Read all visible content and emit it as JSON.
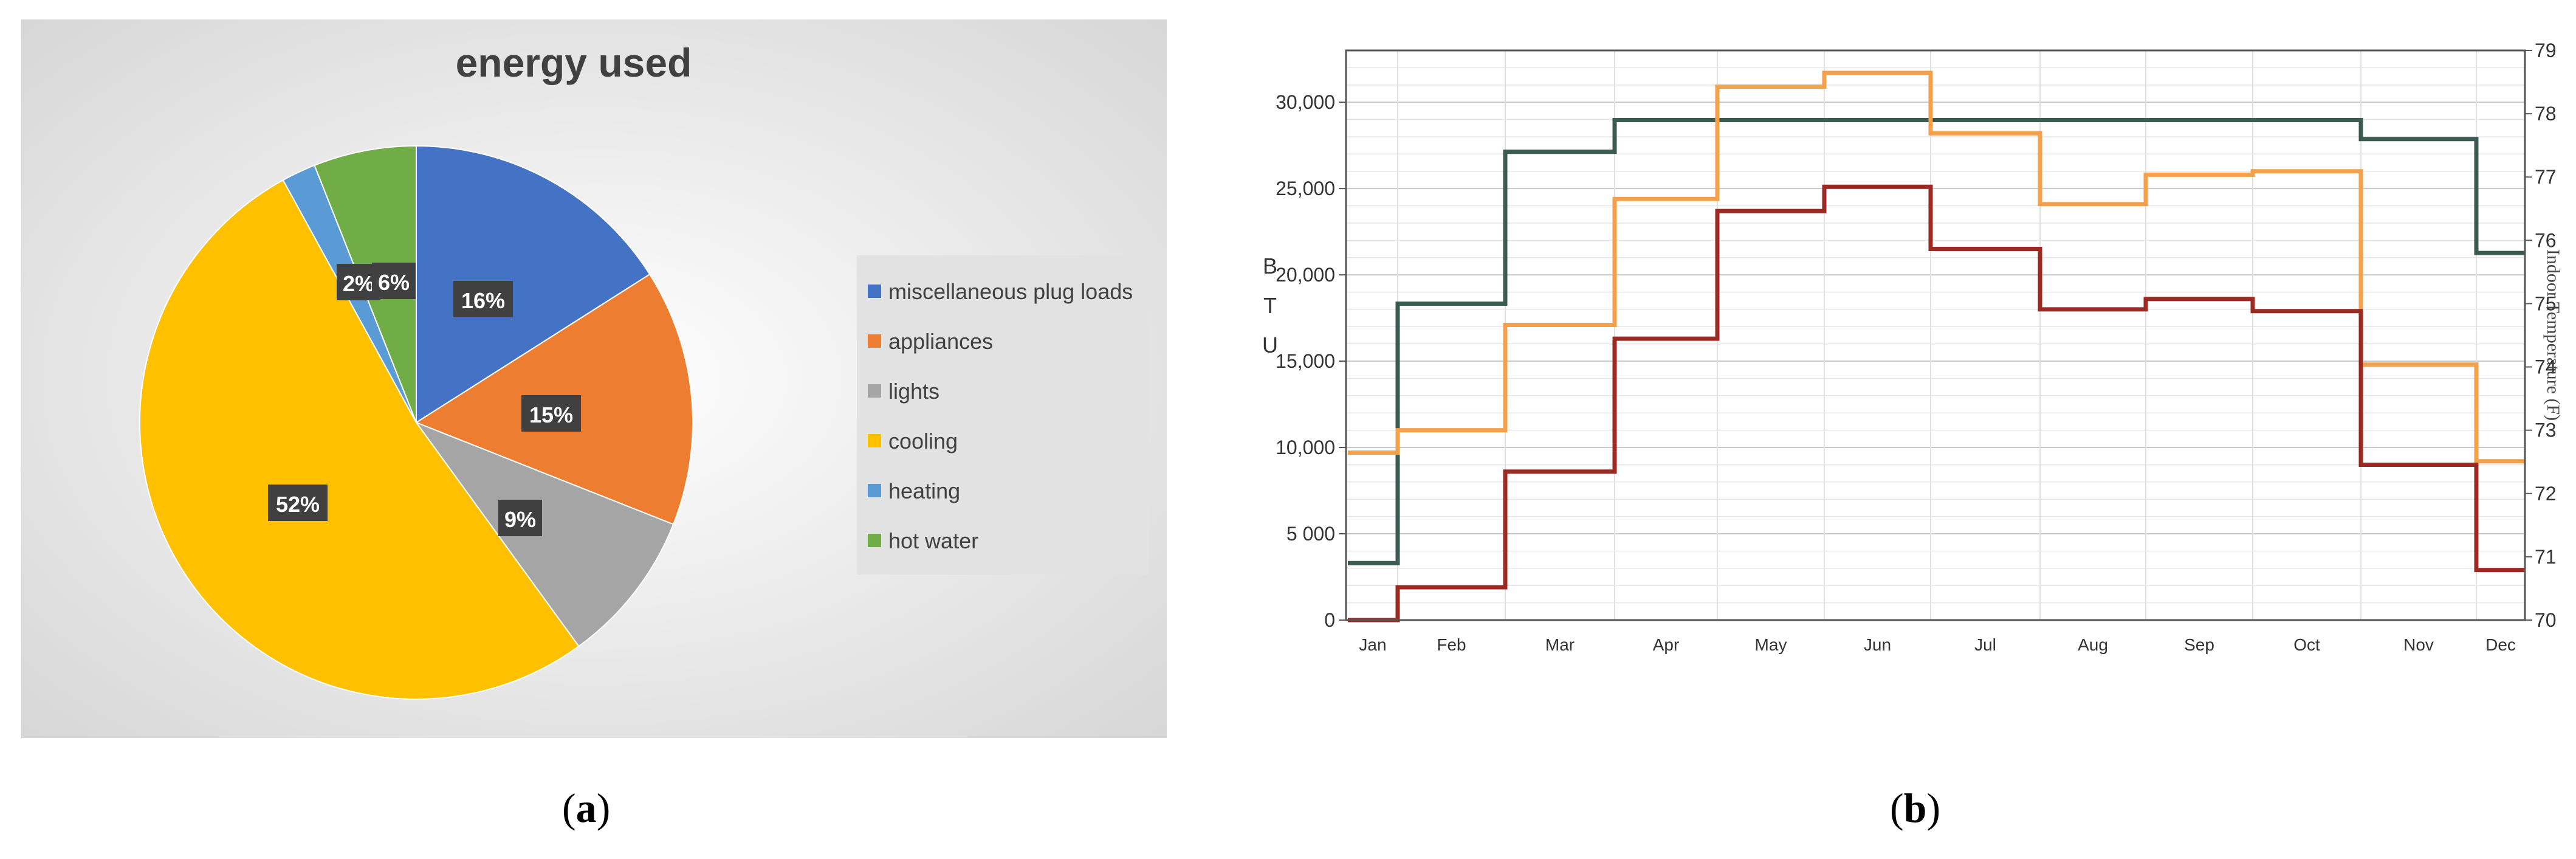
{
  "chart_data": [
    {
      "type": "pie",
      "title": "energy used",
      "categories": [
        "miscellaneous plug loads",
        "appliances",
        "lights",
        "cooling",
        "heating",
        "hot water"
      ],
      "values": [
        16,
        15,
        9,
        52,
        2,
        6
      ],
      "labels": [
        "16%",
        "15%",
        "9%",
        "52%",
        "2%",
        "6%"
      ],
      "colors": [
        "#4472C4",
        "#ED7D31",
        "#A5A5A5",
        "#FFC000",
        "#5B9BD5",
        "#70AD47"
      ],
      "legend": "right"
    },
    {
      "type": "line",
      "step": true,
      "categories": [
        "Jan",
        "Feb",
        "Mar",
        "Apr",
        "May",
        "Jun",
        "Jul",
        "Aug",
        "Sep",
        "Oct",
        "Nov",
        "Dec"
      ],
      "ylabel": "BTU",
      "y2label": "Indoor Temperature (F)",
      "ylim": [
        0,
        33000
      ],
      "y2lim": [
        70,
        79
      ],
      "yticks": [
        "0",
        "5 000",
        "10,000",
        "15,000",
        "20,000",
        "25,000",
        "30,000"
      ],
      "y2ticks": [
        "70",
        "71",
        "72",
        "73",
        "74",
        "75",
        "76",
        "77",
        "78",
        "79"
      ],
      "grid": true,
      "series": [
        {
          "axis": "right",
          "color": "#3A5A52",
          "values": [
            70.9,
            75.0,
            77.4,
            77.9,
            77.9,
            77.9,
            77.9,
            77.9,
            77.9,
            77.9,
            77.6,
            75.8
          ]
        },
        {
          "axis": "left",
          "color": "#F5A04A",
          "values": [
            9700,
            11000,
            17100,
            24400,
            30900,
            31700,
            28200,
            24100,
            25800,
            26000,
            14800,
            9200
          ]
        },
        {
          "axis": "left",
          "color": "#9A2A22",
          "values": [
            0,
            1900,
            8600,
            16300,
            23700,
            25100,
            21500,
            18000,
            18600,
            17900,
            9000,
            2900
          ]
        }
      ]
    }
  ],
  "captions": {
    "a": "a",
    "b": "b"
  }
}
